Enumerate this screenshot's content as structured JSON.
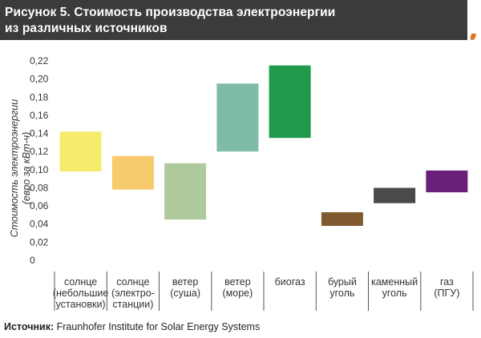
{
  "header": {
    "line1": "Рисунок 5. Стоимость производства электроэнергии",
    "line2": "из различных источников"
  },
  "source": {
    "label": "Источник:",
    "text": " Fraunhofer Institute for Solar Energy Systems"
  },
  "chart_data": {
    "type": "bar",
    "subtype": "floating-range",
    "ylabel_lines": [
      "Стоимость электроэнергии",
      "(евро за кВт-ч)"
    ],
    "yticks": [
      "0",
      "0,02",
      "0,04",
      "0,06",
      "0,08",
      "0,10",
      "0,12",
      "0,14",
      "0,16",
      "0,18",
      "0,20",
      "0,22"
    ],
    "ylim": [
      0,
      0.22
    ],
    "grid": false,
    "categories": [
      {
        "lines": [
          "солнце",
          "(небольшие",
          "установки)"
        ]
      },
      {
        "lines": [
          "солнце",
          "(электро-",
          "станции)"
        ]
      },
      {
        "lines": [
          "ветер",
          "(суша)"
        ]
      },
      {
        "lines": [
          "ветер",
          "(море)"
        ]
      },
      {
        "lines": [
          "биогаз"
        ]
      },
      {
        "lines": [
          "бурый",
          "уголь"
        ]
      },
      {
        "lines": [
          "каменный",
          "уголь"
        ]
      },
      {
        "lines": [
          "газ",
          "(ПГУ)"
        ]
      }
    ],
    "ranges": [
      {
        "low": 0.098,
        "high": 0.142,
        "color": "#f6ec6c"
      },
      {
        "low": 0.078,
        "high": 0.115,
        "color": "#f7cb6c"
      },
      {
        "low": 0.045,
        "high": 0.107,
        "color": "#aec99c"
      },
      {
        "low": 0.12,
        "high": 0.195,
        "color": "#7fbba9"
      },
      {
        "low": 0.135,
        "high": 0.215,
        "color": "#1f9a4a"
      },
      {
        "low": 0.038,
        "high": 0.053,
        "color": "#805a2e"
      },
      {
        "low": 0.063,
        "high": 0.08,
        "color": "#4a4a4a"
      },
      {
        "low": 0.075,
        "high": 0.099,
        "color": "#6a2079"
      }
    ]
  }
}
